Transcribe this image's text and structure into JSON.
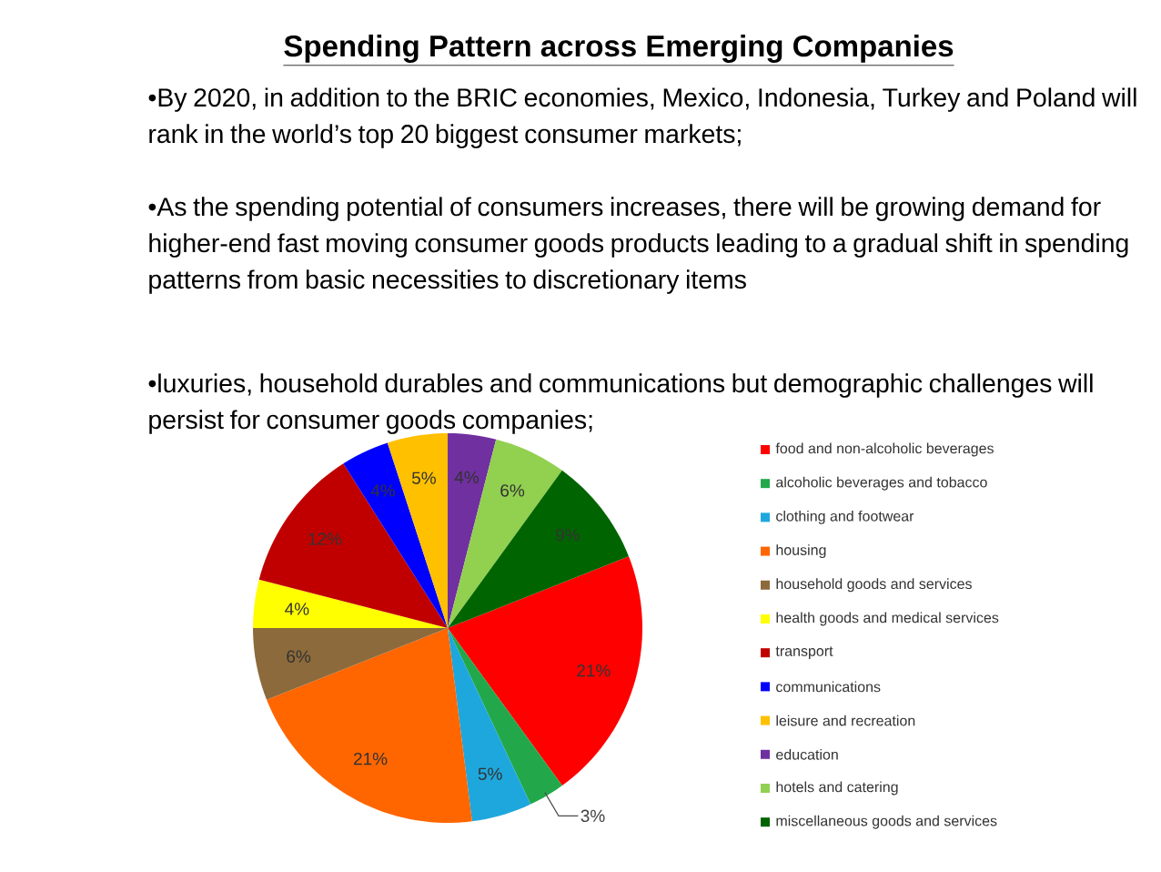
{
  "chart_data": {
    "type": "pie",
    "title": "Spending Pattern across Emerging Companies",
    "annotations": [
      "•By 2020, in addition to the BRIC economies, Mexico, Indonesia, Turkey and Poland will rank in the world’s top 20 biggest consumer markets;",
      "•As the spending potential of consumers increases, there will be growing demand for higher-end fast moving consumer goods products leading to a gradual shift in spending patterns from basic necessities to discretionary items",
      "•luxuries, household durables and communications but demographic challenges will persist for consumer goods companies;"
    ],
    "categories": [
      "food and non-alcoholic beverages",
      "alcoholic beverages and tobacco",
      "clothing and footwear",
      "housing",
      "household goods and services",
      "health goods and medical services",
      "transport",
      "communications",
      "leisure and recreation",
      "education",
      "hotels and catering",
      "miscellaneous goods and services"
    ],
    "values": [
      21,
      3,
      5,
      21,
      6,
      4,
      12,
      4,
      5,
      4,
      6,
      9
    ],
    "value_labels": [
      "21%",
      "3%",
      "5%",
      "21%",
      "6%",
      "4%",
      "12%",
      "4%",
      "5%",
      "4%",
      "6%",
      "9%"
    ],
    "colors": [
      "#ff0000",
      "#22a84a",
      "#1ea7dc",
      "#ff6600",
      "#8c6a3b",
      "#ffff00",
      "#c00000",
      "#0000ff",
      "#ffc000",
      "#7030a0",
      "#92d050",
      "#006400"
    ],
    "legend": "right"
  }
}
